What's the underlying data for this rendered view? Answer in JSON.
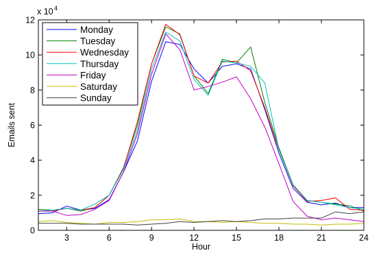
{
  "chart_data": {
    "type": "line",
    "xlabel": "Hour",
    "ylabel": "Emails sent",
    "y_multiplier_label": "x 10",
    "y_multiplier_exponent": "4",
    "xlim": [
      1,
      24
    ],
    "ylim": [
      0,
      120000
    ],
    "x_ticks": [
      3,
      6,
      9,
      12,
      15,
      18,
      21,
      24
    ],
    "y_ticks": [
      0,
      20000,
      40000,
      60000,
      80000,
      100000,
      120000
    ],
    "y_tick_labels": [
      "0",
      "2",
      "4",
      "6",
      "8",
      "10",
      "12"
    ],
    "grid": false,
    "legend_position": "top-left",
    "x": [
      1,
      2,
      3,
      4,
      5,
      6,
      7,
      8,
      9,
      10,
      11,
      12,
      13,
      14,
      15,
      16,
      17,
      18,
      19,
      20,
      21,
      22,
      23,
      24
    ],
    "series": [
      {
        "name": "Monday",
        "color": "#0000ff",
        "values": [
          9500,
          10000,
          13800,
          11500,
          12500,
          17500,
          33000,
          51000,
          85000,
          107500,
          106000,
          92000,
          84000,
          93500,
          95000,
          92000,
          69000,
          44000,
          24000,
          16000,
          14500,
          15500,
          13000,
          13000
        ]
      },
      {
        "name": "Tuesday",
        "color": "#008000",
        "values": [
          12000,
          11500,
          12500,
          11000,
          13000,
          20000,
          35500,
          60000,
          95000,
          116000,
          112000,
          88000,
          78000,
          97500,
          95500,
          104500,
          73000,
          47000,
          26000,
          17000,
          16000,
          15000,
          14000,
          11000
        ]
      },
      {
        "name": "Wednesday",
        "color": "#ff0000",
        "values": [
          11000,
          11000,
          12500,
          11500,
          13000,
          20000,
          35000,
          62000,
          95000,
          117500,
          111500,
          88000,
          84000,
          96000,
          96500,
          91000,
          70000,
          46000,
          25500,
          16500,
          17000,
          18500,
          12000,
          11500
        ]
      },
      {
        "name": "Thursday",
        "color": "#00bfbf",
        "values": [
          11000,
          11500,
          12500,
          11500,
          15000,
          20000,
          34500,
          57000,
          92000,
          113000,
          108000,
          86000,
          77000,
          96500,
          95500,
          93500,
          84000,
          46000,
          26000,
          17000,
          16000,
          14500,
          13000,
          12000
        ]
      },
      {
        "name": "Friday",
        "color": "#bf00bf",
        "values": [
          11000,
          11000,
          8500,
          9000,
          12000,
          17000,
          33000,
          55000,
          89000,
          112000,
          103000,
          80000,
          82000,
          84500,
          87500,
          75000,
          59000,
          38000,
          16500,
          8000,
          6000,
          7000,
          6000,
          5000
        ]
      },
      {
        "name": "Saturday",
        "color": "#bfbf00",
        "values": [
          5000,
          5500,
          4500,
          4000,
          3500,
          4500,
          4500,
          5000,
          6000,
          6000,
          6500,
          5000,
          5000,
          4500,
          5000,
          4500,
          4000,
          4000,
          3500,
          3500,
          3000,
          3500,
          3500,
          4000
        ]
      },
      {
        "name": "Sunday",
        "color": "#404040",
        "values": [
          4000,
          4000,
          4000,
          3500,
          3500,
          3500,
          3500,
          3000,
          3500,
          4000,
          5000,
          4500,
          5000,
          5500,
          5000,
          5500,
          6500,
          6500,
          7000,
          7000,
          7000,
          10500,
          9500,
          10500
        ]
      }
    ]
  }
}
